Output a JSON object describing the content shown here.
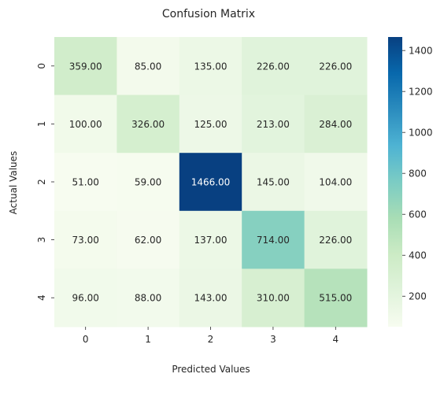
{
  "chart_data": {
    "type": "heatmap",
    "title": "Confusion Matrix",
    "xlabel": "Predicted Values",
    "ylabel": "Actual Values",
    "x_categories": [
      "0",
      "1",
      "2",
      "3",
      "4"
    ],
    "y_categories": [
      "0",
      "1",
      "2",
      "3",
      "4"
    ],
    "values": [
      [
        359,
        85,
        135,
        226,
        226
      ],
      [
        100,
        326,
        125,
        213,
        284
      ],
      [
        51,
        59,
        1466,
        145,
        104
      ],
      [
        73,
        62,
        137,
        714,
        226
      ],
      [
        96,
        88,
        143,
        310,
        515
      ]
    ],
    "cell_labels": [
      [
        "359.00",
        "85.00",
        "135.00",
        "226.00",
        "226.00"
      ],
      [
        "100.00",
        "326.00",
        "125.00",
        "213.00",
        "284.00"
      ],
      [
        "51.00",
        "59.00",
        "1466.00",
        "145.00",
        "104.00"
      ],
      [
        "73.00",
        "62.00",
        "137.00",
        "714.00",
        "226.00"
      ],
      [
        "96.00",
        "88.00",
        "143.00",
        "310.00",
        "515.00"
      ]
    ],
    "colormap": "GnBu",
    "colormap_stops": [
      "#f7fcf0",
      "#e0f3db",
      "#ccebc5",
      "#a8ddb5",
      "#7bccc4",
      "#4eb3d3",
      "#2b8cbe",
      "#0868ac",
      "#084081"
    ],
    "vmin": 51,
    "vmax": 1466,
    "colorbar_ticks": [
      200,
      400,
      600,
      800,
      1000,
      1200,
      1400
    ],
    "colorbar_tick_labels": [
      "200",
      "400",
      "600",
      "800",
      "1000",
      "1200",
      "1400"
    ],
    "grid": false
  }
}
